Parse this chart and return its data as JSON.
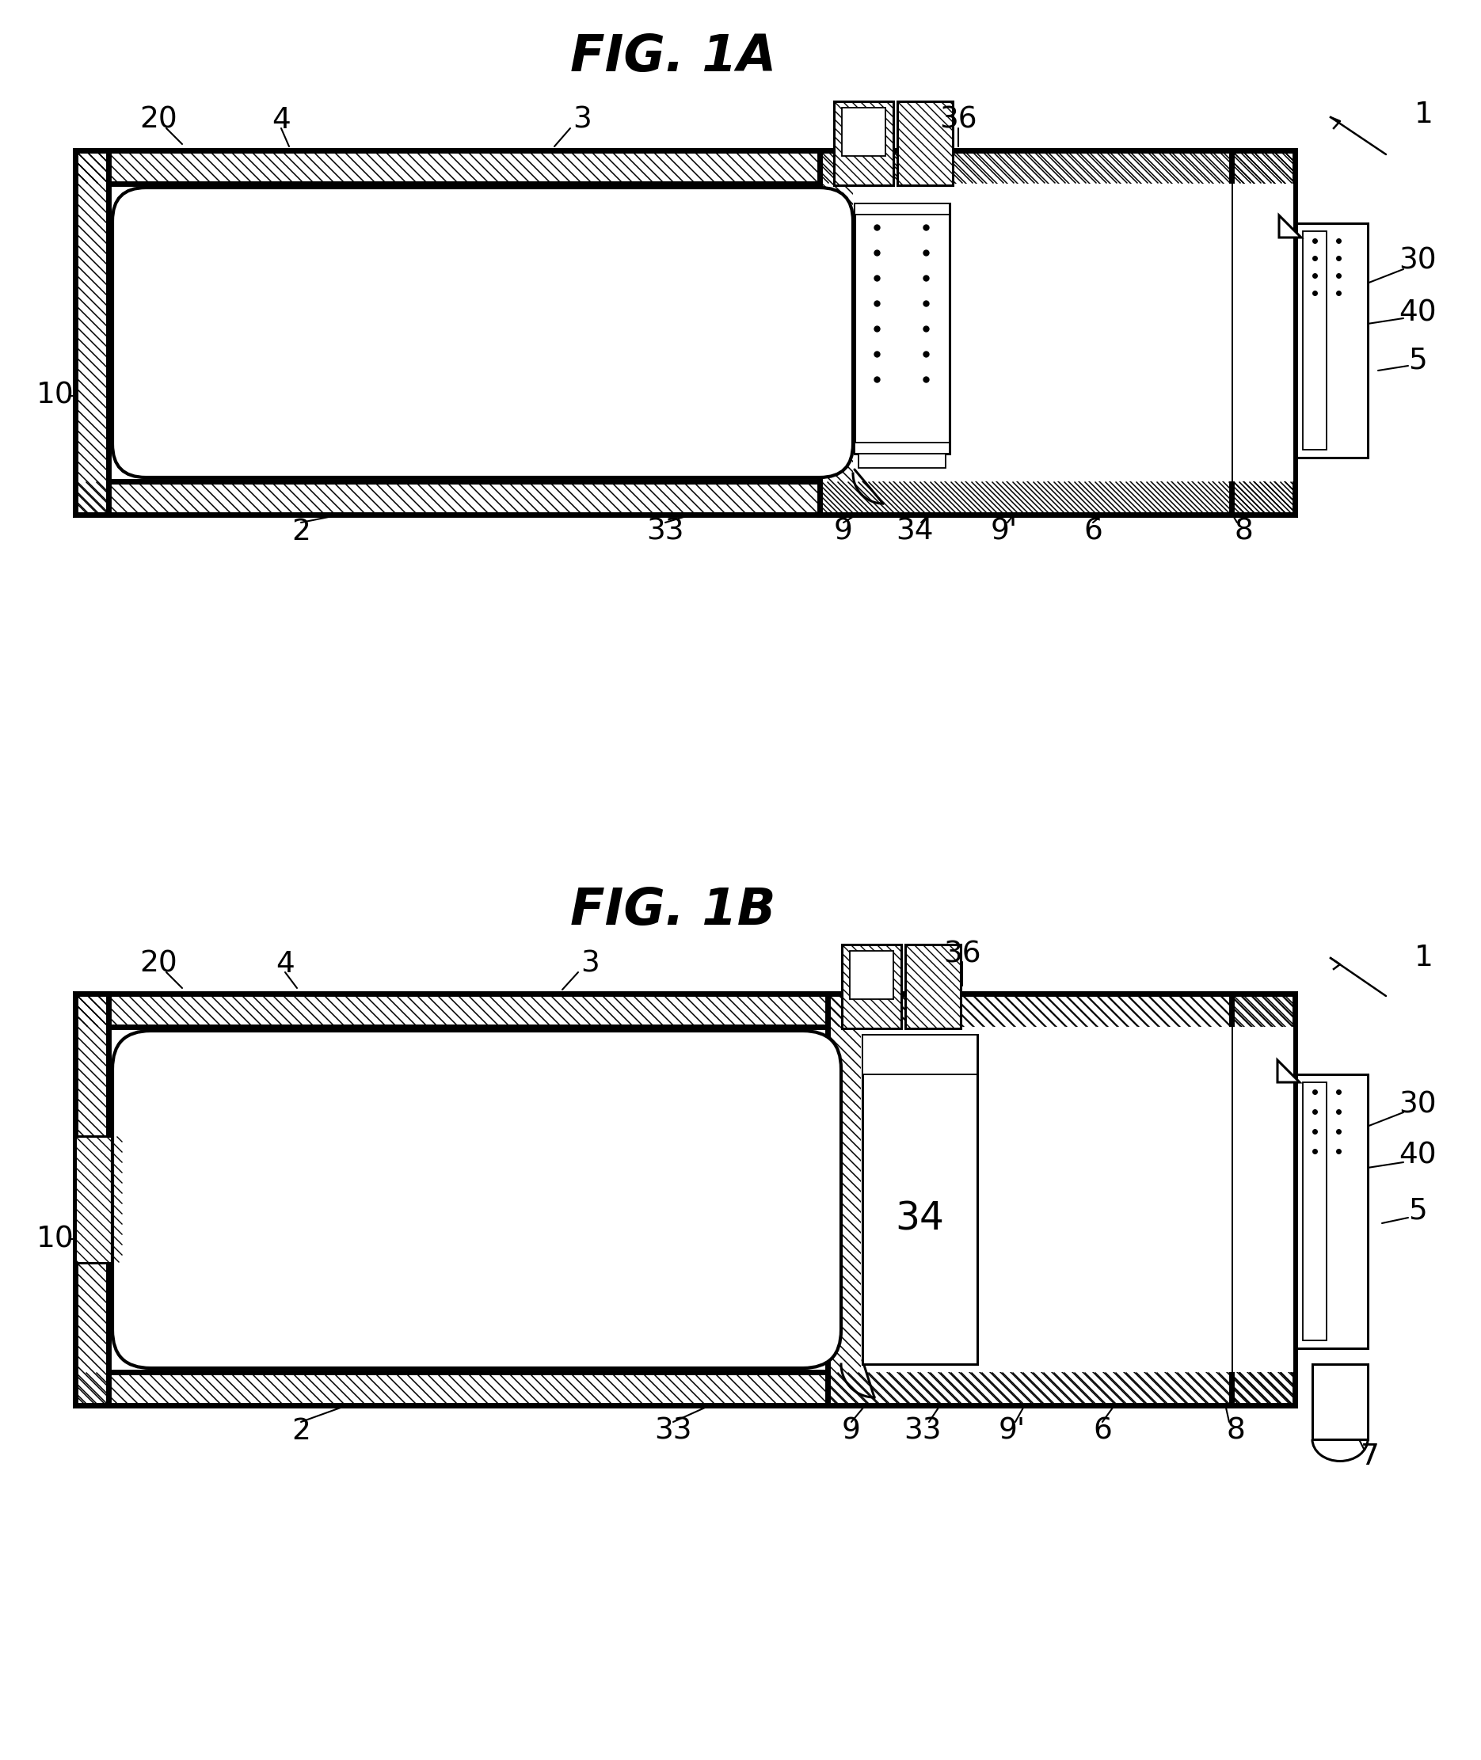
{
  "fig_width": 18.7,
  "fig_height": 22.23,
  "bg_color": "#ffffff",
  "title_1A": "FIG. 1A",
  "title_1B": "FIG. 1B",
  "title_fontsize": 46,
  "label_fontsize": 27
}
